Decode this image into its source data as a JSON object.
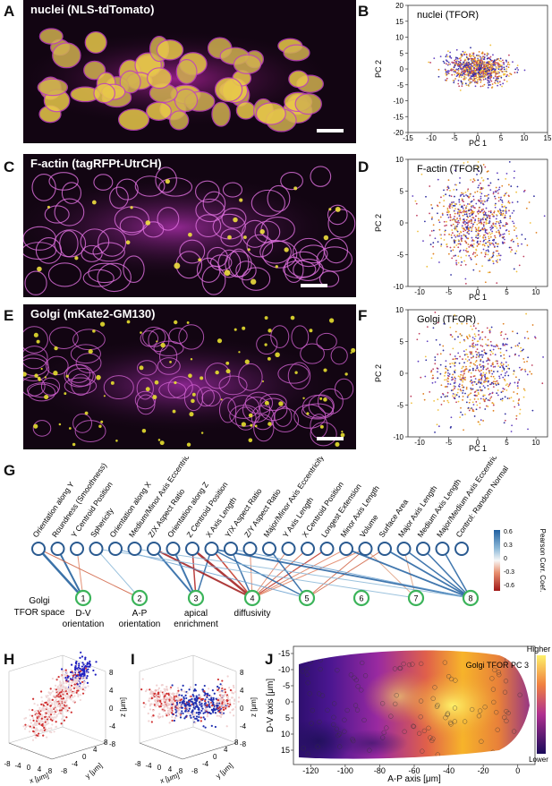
{
  "panels": {
    "A": {
      "letter": "A",
      "title": "nuclei (NLS-tdTomato)"
    },
    "B": {
      "letter": "B",
      "title": "nuclei (TFOR)",
      "xlabel": "PC 1",
      "ylabel": "PC 2",
      "xticks": [
        "-15",
        "-10",
        "-5",
        "0",
        "5",
        "10",
        "15"
      ],
      "yticks": [
        "20",
        "15",
        "10",
        "5",
        "0",
        "-5",
        "-10",
        "-15",
        "-20"
      ]
    },
    "C": {
      "letter": "C",
      "title": "F-actin (tagRFPt-UtrCH)"
    },
    "D": {
      "letter": "D",
      "title": "F-actin (TFOR)",
      "xlabel": "PC 1",
      "ylabel": "PC 2",
      "xticks": [
        "-10",
        "-5",
        "0",
        "5",
        "10"
      ],
      "yticks": [
        "10",
        "5",
        "0",
        "-5",
        "-10"
      ]
    },
    "E": {
      "letter": "E",
      "title": "Golgi (mKate2-GM130)"
    },
    "F": {
      "letter": "F",
      "title": "Golgi (TFOR)",
      "xlabel": "PC 1",
      "ylabel": "PC 2",
      "xticks": [
        "-10",
        "-5",
        "0",
        "5",
        "10"
      ],
      "yticks": [
        "10",
        "5",
        "0",
        "-5",
        "-10"
      ]
    },
    "G": {
      "letter": "G",
      "features": [
        "Orientation along Y",
        "Roundness (Smoothness)",
        "Y Centroid Position",
        "Sphericity",
        "Orientation along X",
        "Medium/Minor Axis Eccentricity",
        "Z/X Aspect Ratio",
        "Orientation along Z",
        "Z Centroid Position",
        "X Axis Length",
        "Y/X Aspect Ratio",
        "Z/Y Aspect Ratio",
        "Major/Minor Axis Eccentricity",
        "Y Axis Length",
        "X Centroid Position",
        "Longest Extension",
        "Minor Axis Length",
        "Volume",
        "Surface Area",
        "Major Axis Length",
        "Medium Axis Length",
        "Major/Medium Axis Eccentricity",
        "Control: Random Normal"
      ],
      "nodes": [
        {
          "num": "1",
          "label": "D-V\norientation"
        },
        {
          "num": "2",
          "label": "A-P\norientation"
        },
        {
          "num": "3",
          "label": "apical\nenrichment"
        },
        {
          "num": "4",
          "label": "diffusivity"
        },
        {
          "num": "5",
          "label": ""
        },
        {
          "num": "6",
          "label": ""
        },
        {
          "num": "7",
          "label": ""
        },
        {
          "num": "8",
          "label": ""
        }
      ],
      "space_label": "Golgi\nTFOR space",
      "colorbar": {
        "ticks": [
          "0.6",
          "0.3",
          "0",
          "-0.3",
          "-0.6"
        ],
        "title": "Pearson Corr. Coef."
      }
    },
    "H": {
      "letter": "H",
      "xlabel": "x [μm]",
      "ylabel": "y [μm]",
      "zlabel": "z [μm]",
      "zticks": [
        "8",
        "4",
        "0",
        "-4",
        "-8"
      ],
      "xticks": [
        "-8",
        "-4",
        "0",
        "4",
        "8"
      ],
      "yticks": [
        "-8",
        "-4",
        "0",
        "4",
        "8"
      ]
    },
    "I": {
      "letter": "I",
      "xlabel": "x [μm]",
      "ylabel": "y [μm]",
      "zlabel": "z [μm]",
      "zticks": [
        "8",
        "4",
        "0",
        "-4",
        "-8"
      ],
      "xticks": [
        "-8",
        "-4",
        "0",
        "4",
        "8"
      ],
      "yticks": [
        "-8",
        "-4",
        "0",
        "4",
        "8"
      ]
    },
    "J": {
      "letter": "J",
      "title": "Golgi TFOR PC 3",
      "xlabel": "A-P axis [μm]",
      "ylabel": "D-V axis [μm]",
      "xticks": [
        "-120",
        "-100",
        "-80",
        "-60",
        "-40",
        "-20",
        "0"
      ],
      "yticks": [
        "-15",
        "-10",
        "-5",
        "0",
        "5",
        "10",
        "15"
      ],
      "colorbar_high": "Higher",
      "colorbar_low": "Lower"
    }
  },
  "colors": {
    "magenta": "#c020c0",
    "yellow": "#f0e020",
    "node_blue": "#2a5a90",
    "node_green": "#3cb45a"
  }
}
